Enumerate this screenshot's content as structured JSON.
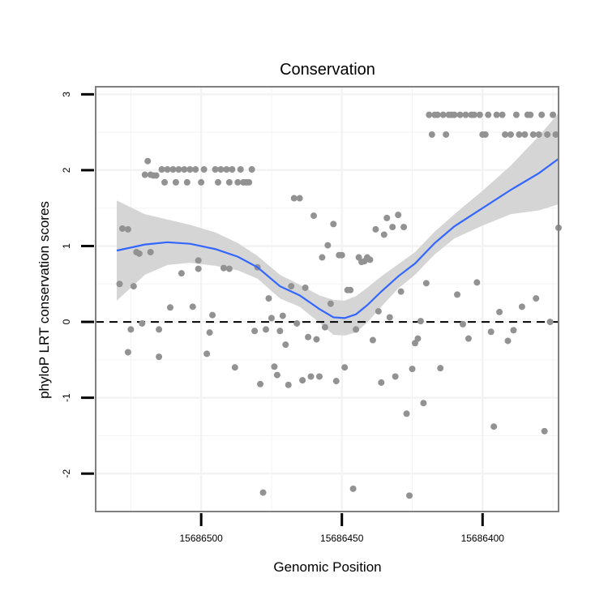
{
  "chart_data": {
    "type": "scatter",
    "title": "Conservation",
    "xlabel": "Genomic Position",
    "ylabel": "phyloP LRT conservation scores",
    "x_reversed": true,
    "xlim": [
      15686537.5,
      15686373
    ],
    "ylim": [
      -2.5,
      3.1
    ],
    "x_ticks": [
      15686500,
      15686450,
      15686400
    ],
    "x_tick_labels": [
      "15686500",
      "15686450",
      "15686400"
    ],
    "y_ticks": [
      3,
      2,
      1,
      0,
      -1,
      -2
    ],
    "y_tick_labels": [
      "3",
      "2",
      "1",
      "0",
      "-1",
      "-2"
    ],
    "grid": true,
    "reference_line": 0,
    "colors": {
      "points": "#929292",
      "fit_line": "#3366ff",
      "ribbon": "#d5d5d5",
      "panel_border": "#808080",
      "grid": "#f3f3f3"
    },
    "points": [
      [
        15686529,
        0.5
      ],
      [
        15686528,
        1.23
      ],
      [
        15686526,
        1.22
      ],
      [
        15686526,
        -0.4
      ],
      [
        15686525,
        -0.1
      ],
      [
        15686524,
        0.47
      ],
      [
        15686523,
        0.92
      ],
      [
        15686522,
        0.9
      ],
      [
        15686521,
        -0.02
      ],
      [
        15686520,
        1.94
      ],
      [
        15686519,
        2.12
      ],
      [
        15686518,
        1.94
      ],
      [
        15686518,
        0.92
      ],
      [
        15686517,
        1.93
      ],
      [
        15686516,
        1.93
      ],
      [
        15686515,
        -0.46
      ],
      [
        15686515,
        -0.1
      ],
      [
        15686514,
        2.01
      ],
      [
        15686513,
        1.84
      ],
      [
        15686512,
        2.01
      ],
      [
        15686511,
        0.19
      ],
      [
        15686510,
        2.01
      ],
      [
        15686509,
        1.84
      ],
      [
        15686508,
        2.01
      ],
      [
        15686507,
        0.64
      ],
      [
        15686506,
        2.01
      ],
      [
        15686505,
        1.84
      ],
      [
        15686504,
        2.01
      ],
      [
        15686503,
        0.2
      ],
      [
        15686502,
        2.01
      ],
      [
        15686501,
        0.7
      ],
      [
        15686501,
        0.81
      ],
      [
        15686500,
        1.84
      ],
      [
        15686499,
        2.01
      ],
      [
        15686498,
        -0.42
      ],
      [
        15686497,
        -0.14
      ],
      [
        15686496,
        0.09
      ],
      [
        15686495,
        2.01
      ],
      [
        15686494,
        1.84
      ],
      [
        15686493,
        2.01
      ],
      [
        15686492,
        0.71
      ],
      [
        15686491,
        2.01
      ],
      [
        15686490,
        0.7
      ],
      [
        15686490,
        1.84
      ],
      [
        15686489,
        2.01
      ],
      [
        15686488,
        -0.6
      ],
      [
        15686487,
        1.84
      ],
      [
        15686486,
        2.01
      ],
      [
        15686485,
        1.84
      ],
      [
        15686484,
        1.84
      ],
      [
        15686483,
        1.84
      ],
      [
        15686482,
        2.01
      ],
      [
        15686481,
        -0.12
      ],
      [
        15686480,
        0.72
      ],
      [
        15686479,
        -0.82
      ],
      [
        15686478,
        -2.25
      ],
      [
        15686477,
        -0.1
      ],
      [
        15686476,
        0.31
      ],
      [
        15686475,
        0.05
      ],
      [
        15686474,
        -0.59
      ],
      [
        15686473,
        -0.7
      ],
      [
        15686472,
        -0.12
      ],
      [
        15686471,
        0.08
      ],
      [
        15686470,
        -0.3
      ],
      [
        15686469,
        -0.83
      ],
      [
        15686468,
        0.47
      ],
      [
        15686467,
        1.63
      ],
      [
        15686466,
        -0.02
      ],
      [
        15686465,
        1.63
      ],
      [
        15686464,
        -0.77
      ],
      [
        15686463,
        0.45
      ],
      [
        15686462,
        -0.2
      ],
      [
        15686461,
        -0.72
      ],
      [
        15686460,
        1.4
      ],
      [
        15686459,
        -0.23
      ],
      [
        15686458,
        -0.72
      ],
      [
        15686457,
        0.85
      ],
      [
        15686456,
        -0.07
      ],
      [
        15686455,
        1.01
      ],
      [
        15686454,
        0.24
      ],
      [
        15686453,
        1.29
      ],
      [
        15686452,
        -0.78
      ],
      [
        15686451,
        0.88
      ],
      [
        15686450,
        0.88
      ],
      [
        15686449,
        -0.6
      ],
      [
        15686448,
        0.42
      ],
      [
        15686447,
        0.42
      ],
      [
        15686446,
        -2.2
      ],
      [
        15686445,
        -0.1
      ],
      [
        15686444,
        0.85
      ],
      [
        15686443,
        0.79
      ],
      [
        15686442,
        0.8
      ],
      [
        15686441,
        0.85
      ],
      [
        15686440,
        0.82
      ],
      [
        15686439,
        -0.24
      ],
      [
        15686438,
        1.22
      ],
      [
        15686437,
        0.14
      ],
      [
        15686436,
        -0.8
      ],
      [
        15686435,
        1.15
      ],
      [
        15686434,
        1.37
      ],
      [
        15686433,
        0.06
      ],
      [
        15686432,
        1.25
      ],
      [
        15686431,
        -0.72
      ],
      [
        15686430,
        1.41
      ],
      [
        15686429,
        0.4
      ],
      [
        15686428,
        1.25
      ],
      [
        15686427,
        -1.21
      ],
      [
        15686426,
        -2.29
      ],
      [
        15686425,
        -0.62
      ],
      [
        15686424,
        -0.28
      ],
      [
        15686423,
        -0.22
      ],
      [
        15686422,
        0.01
      ],
      [
        15686421,
        -1.07
      ],
      [
        15686420,
        0.51
      ],
      [
        15686419,
        2.73
      ],
      [
        15686418,
        2.47
      ],
      [
        15686417,
        2.73
      ],
      [
        15686416,
        2.73
      ],
      [
        15686415,
        -0.61
      ],
      [
        15686414,
        2.73
      ],
      [
        15686413,
        2.47
      ],
      [
        15686412,
        2.73
      ],
      [
        15686411,
        2.73
      ],
      [
        15686410,
        2.73
      ],
      [
        15686409,
        0.36
      ],
      [
        15686408,
        2.73
      ],
      [
        15686407,
        -0.03
      ],
      [
        15686406,
        2.73
      ],
      [
        15686405,
        -0.22
      ],
      [
        15686404,
        2.73
      ],
      [
        15686403,
        2.73
      ],
      [
        15686402,
        0.52
      ],
      [
        15686401,
        2.73
      ],
      [
        15686400,
        2.47
      ],
      [
        15686399,
        2.47
      ],
      [
        15686398,
        2.73
      ],
      [
        15686397,
        -0.13
      ],
      [
        15686396,
        -1.38
      ],
      [
        15686395,
        2.73
      ],
      [
        15686394,
        0.13
      ],
      [
        15686393,
        2.73
      ],
      [
        15686392,
        2.47
      ],
      [
        15686391,
        -0.25
      ],
      [
        15686390,
        2.47
      ],
      [
        15686389,
        -0.11
      ],
      [
        15686388,
        2.73
      ],
      [
        15686387,
        2.47
      ],
      [
        15686386,
        0.2
      ],
      [
        15686385,
        2.47
      ],
      [
        15686384,
        2.73
      ],
      [
        15686383,
        2.73
      ],
      [
        15686382,
        2.47
      ],
      [
        15686381,
        0.31
      ],
      [
        15686380,
        2.47
      ],
      [
        15686379,
        2.73
      ],
      [
        15686378,
        -1.44
      ],
      [
        15686377,
        2.47
      ],
      [
        15686376,
        0.0
      ],
      [
        15686375,
        2.73
      ],
      [
        15686374,
        2.47
      ],
      [
        15686373,
        1.24
      ]
    ],
    "fit_curve": [
      [
        15686530,
        0.94
      ],
      [
        15686520,
        1.02
      ],
      [
        15686512,
        1.05
      ],
      [
        15686504,
        1.03
      ],
      [
        15686495,
        0.96
      ],
      [
        15686487,
        0.86
      ],
      [
        15686480,
        0.72
      ],
      [
        15686472,
        0.47
      ],
      [
        15686465,
        0.35
      ],
      [
        15686458,
        0.17
      ],
      [
        15686453,
        0.06
      ],
      [
        15686449,
        0.05
      ],
      [
        15686445,
        0.1
      ],
      [
        15686441,
        0.22
      ],
      [
        15686436,
        0.4
      ],
      [
        15686430,
        0.6
      ],
      [
        15686424,
        0.77
      ],
      [
        15686417,
        1.04
      ],
      [
        15686410,
        1.26
      ],
      [
        15686400,
        1.5
      ],
      [
        15686390,
        1.74
      ],
      [
        15686380,
        1.96
      ],
      [
        15686373,
        2.15
      ]
    ],
    "ribbon_upper": [
      [
        15686530,
        1.6
      ],
      [
        15686520,
        1.42
      ],
      [
        15686512,
        1.35
      ],
      [
        15686504,
        1.28
      ],
      [
        15686495,
        1.18
      ],
      [
        15686487,
        1.04
      ],
      [
        15686480,
        0.87
      ],
      [
        15686472,
        0.62
      ],
      [
        15686465,
        0.49
      ],
      [
        15686458,
        0.35
      ],
      [
        15686453,
        0.29
      ],
      [
        15686449,
        0.28
      ],
      [
        15686445,
        0.34
      ],
      [
        15686441,
        0.45
      ],
      [
        15686436,
        0.6
      ],
      [
        15686430,
        0.76
      ],
      [
        15686424,
        0.92
      ],
      [
        15686417,
        1.19
      ],
      [
        15686410,
        1.42
      ],
      [
        15686400,
        1.73
      ],
      [
        15686390,
        2.06
      ],
      [
        15686380,
        2.45
      ],
      [
        15686373,
        2.75
      ]
    ],
    "ribbon_lower": [
      [
        15686530,
        0.28
      ],
      [
        15686520,
        0.62
      ],
      [
        15686512,
        0.75
      ],
      [
        15686504,
        0.78
      ],
      [
        15686495,
        0.74
      ],
      [
        15686487,
        0.68
      ],
      [
        15686480,
        0.57
      ],
      [
        15686472,
        0.31
      ],
      [
        15686465,
        0.2
      ],
      [
        15686458,
        -0.01
      ],
      [
        15686453,
        -0.17
      ],
      [
        15686449,
        -0.18
      ],
      [
        15686445,
        -0.14
      ],
      [
        15686441,
        -0.01
      ],
      [
        15686436,
        0.2
      ],
      [
        15686430,
        0.44
      ],
      [
        15686424,
        0.62
      ],
      [
        15686417,
        0.89
      ],
      [
        15686410,
        1.1
      ],
      [
        15686400,
        1.27
      ],
      [
        15686390,
        1.42
      ],
      [
        15686380,
        1.47
      ],
      [
        15686373,
        1.55
      ]
    ]
  }
}
